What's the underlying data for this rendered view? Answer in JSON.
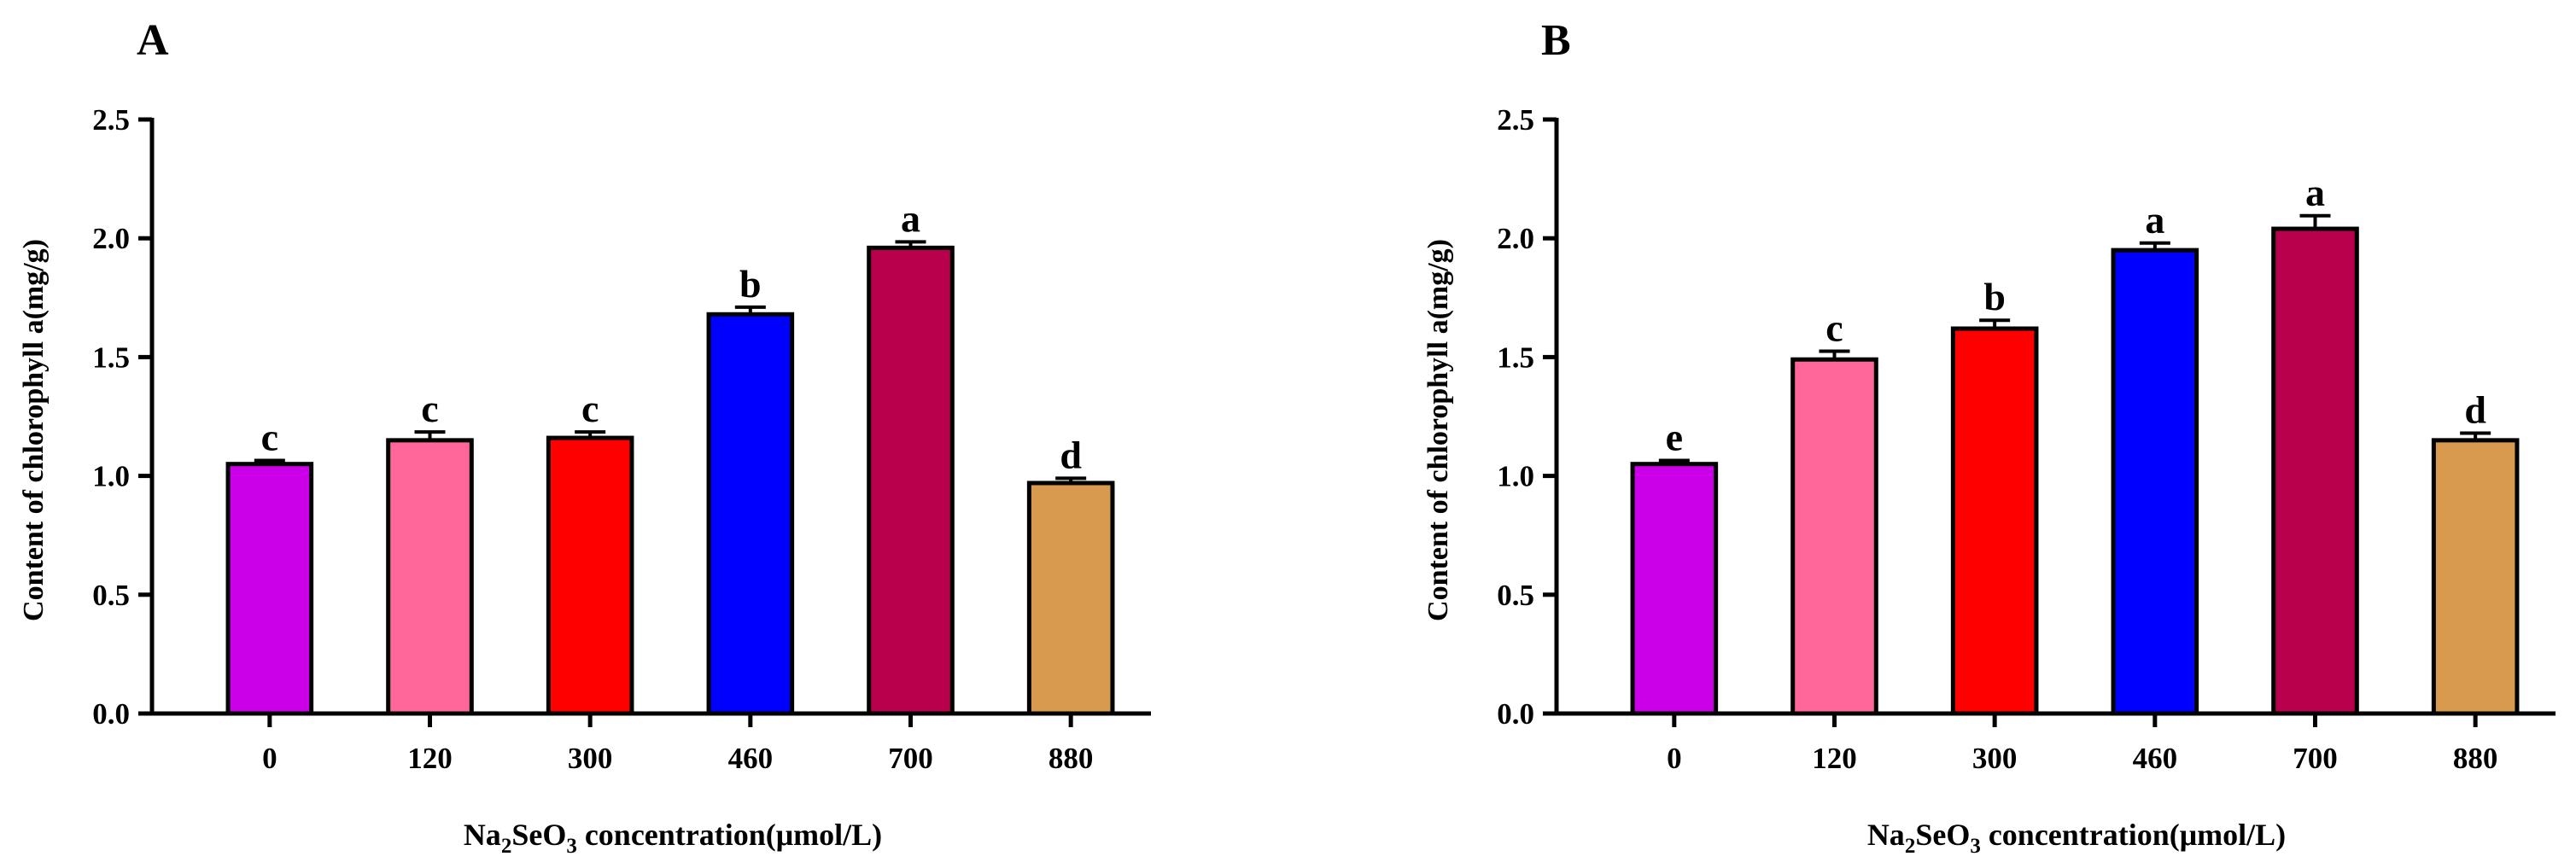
{
  "chart_data": [
    {
      "panel_label": "A",
      "type": "bar",
      "categories": [
        "0",
        "120",
        "300",
        "460",
        "700",
        "880"
      ],
      "values": [
        1.05,
        1.15,
        1.16,
        1.68,
        1.96,
        0.97
      ],
      "errors": [
        0.015,
        0.035,
        0.025,
        0.03,
        0.025,
        0.02
      ],
      "significance": [
        "c",
        "c",
        "c",
        "b",
        "a",
        "d"
      ],
      "colors": [
        "#CC00E8",
        "#FF6699",
        "#FF0000",
        "#0000FF",
        "#B8004C",
        "#D89A4E"
      ],
      "ylabel": "Content of chlorophyll a(mg/g)",
      "xlabel": {
        "pre": "Na",
        "sub1": "2",
        "mid": "SeO",
        "sub2": "3",
        "post": " concentration(μmol/L)"
      },
      "ylim": [
        0,
        2.5
      ],
      "yticks": [
        "0.0",
        "0.5",
        "1.0",
        "1.5",
        "2.0",
        "2.5"
      ],
      "grid": false
    },
    {
      "panel_label": "B",
      "type": "bar",
      "categories": [
        "0",
        "120",
        "300",
        "460",
        "700",
        "880"
      ],
      "values": [
        1.05,
        1.49,
        1.62,
        1.95,
        2.04,
        1.15
      ],
      "errors": [
        0.015,
        0.035,
        0.035,
        0.03,
        0.055,
        0.03
      ],
      "significance": [
        "e",
        "c",
        "b",
        "a",
        "a",
        "d"
      ],
      "colors": [
        "#CC00E8",
        "#FF6699",
        "#FF0000",
        "#0000FF",
        "#B8004C",
        "#D89A4E"
      ],
      "ylabel": "Content of chlorophyll a(mg/g)",
      "xlabel": {
        "pre": "Na",
        "sub1": "2",
        "mid": "SeO",
        "sub2": "3",
        "post": " concentration(μmol/L)"
      },
      "ylim": [
        0,
        2.5
      ],
      "yticks": [
        "0.0",
        "0.5",
        "1.0",
        "1.5",
        "2.0",
        "2.5"
      ],
      "grid": false
    }
  ]
}
